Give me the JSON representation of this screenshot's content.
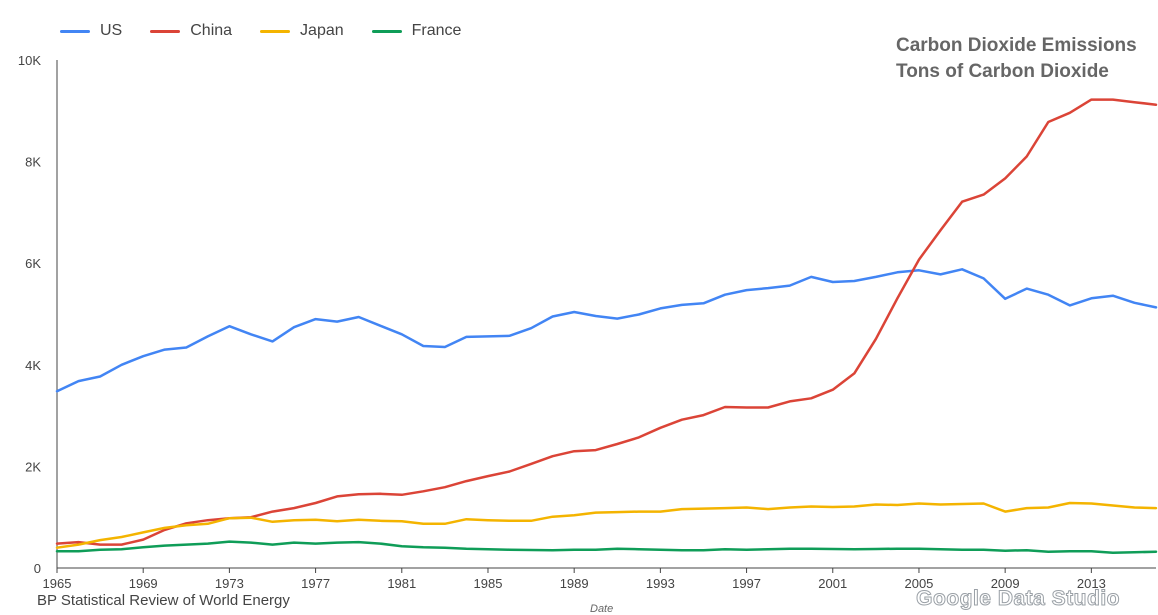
{
  "chart_data": {
    "type": "line",
    "title": "Carbon Dioxide Emissions",
    "subtitle": "Tons of Carbon Dioxide",
    "xlabel": "Date",
    "ylabel": "",
    "source": "BP Statistical Review of World Energy",
    "branding": "Google Data Studio",
    "xlim": [
      1965,
      2016
    ],
    "ylim": [
      0,
      10000
    ],
    "x_ticks": [
      "1965",
      "1969",
      "1973",
      "1977",
      "1981",
      "1985",
      "1989",
      "1993",
      "1997",
      "2001",
      "2005",
      "2009",
      "2013"
    ],
    "y_ticks": [
      "0",
      "2K",
      "4K",
      "6K",
      "8K",
      "10K"
    ],
    "legend_position": "top-left",
    "grid": false,
    "x": [
      1965,
      1966,
      1967,
      1968,
      1969,
      1970,
      1971,
      1972,
      1973,
      1974,
      1975,
      1976,
      1977,
      1978,
      1979,
      1980,
      1981,
      1982,
      1983,
      1984,
      1985,
      1986,
      1987,
      1988,
      1989,
      1990,
      1991,
      1992,
      1993,
      1994,
      1995,
      1996,
      1997,
      1998,
      1999,
      2000,
      2001,
      2002,
      2003,
      2004,
      2005,
      2006,
      2007,
      2008,
      2009,
      2010,
      2011,
      2012,
      2013,
      2014,
      2015,
      2016
    ],
    "series": [
      {
        "name": "US",
        "color": "#4285f4",
        "values": [
          3480,
          3680,
          3770,
          4000,
          4170,
          4300,
          4340,
          4560,
          4760,
          4600,
          4460,
          4740,
          4900,
          4850,
          4940,
          4770,
          4600,
          4370,
          4350,
          4550,
          4560,
          4570,
          4720,
          4950,
          5040,
          4960,
          4910,
          4990,
          5110,
          5180,
          5210,
          5380,
          5470,
          5510,
          5560,
          5730,
          5630,
          5650,
          5730,
          5820,
          5860,
          5780,
          5880,
          5700,
          5300,
          5500,
          5380,
          5170,
          5310,
          5360,
          5220,
          5130
        ]
      },
      {
        "name": "China",
        "color": "#db4437",
        "values": [
          480,
          510,
          460,
          460,
          560,
          750,
          880,
          940,
          980,
          1000,
          1110,
          1180,
          1280,
          1410,
          1450,
          1460,
          1440,
          1510,
          1590,
          1710,
          1810,
          1900,
          2050,
          2200,
          2300,
          2320,
          2440,
          2570,
          2760,
          2920,
          3010,
          3170,
          3160,
          3160,
          3280,
          3340,
          3510,
          3830,
          4510,
          5310,
          6070,
          6650,
          7210,
          7350,
          7670,
          8100,
          8780,
          8960,
          9220,
          9220,
          9170,
          9120
        ]
      },
      {
        "name": "Japan",
        "color": "#f4b400",
        "values": [
          400,
          460,
          550,
          610,
          700,
          790,
          840,
          870,
          980,
          990,
          910,
          940,
          950,
          920,
          950,
          930,
          920,
          870,
          870,
          960,
          940,
          930,
          930,
          1010,
          1040,
          1090,
          1100,
          1110,
          1110,
          1160,
          1170,
          1180,
          1190,
          1160,
          1190,
          1210,
          1200,
          1210,
          1250,
          1240,
          1270,
          1250,
          1260,
          1270,
          1110,
          1180,
          1190,
          1280,
          1270,
          1230,
          1190,
          1180
        ]
      },
      {
        "name": "France",
        "color": "#0f9d58",
        "values": [
          330,
          330,
          360,
          370,
          410,
          440,
          460,
          480,
          520,
          500,
          460,
          500,
          480,
          500,
          510,
          480,
          430,
          410,
          400,
          380,
          370,
          360,
          355,
          350,
          360,
          360,
          380,
          370,
          360,
          350,
          350,
          370,
          360,
          370,
          380,
          380,
          375,
          370,
          375,
          380,
          380,
          370,
          360,
          360,
          340,
          350,
          320,
          330,
          330,
          300,
          310,
          320
        ]
      }
    ]
  }
}
